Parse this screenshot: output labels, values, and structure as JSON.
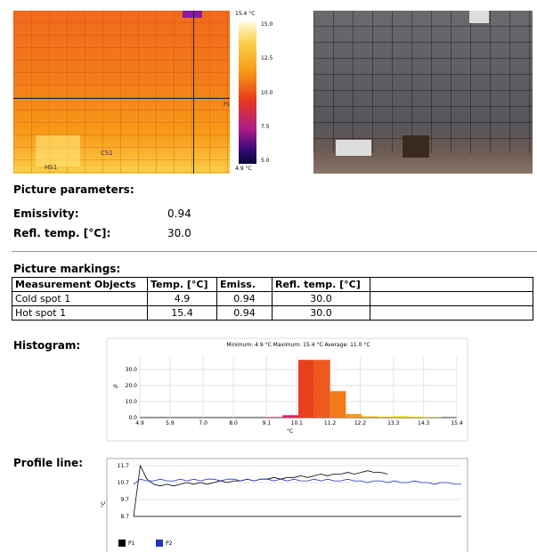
{
  "thermal_image": {
    "max_label": "15.4 °C",
    "min_label": "4.9 °C",
    "scale_labels": [
      "15.0",
      "12.5",
      "10.0",
      "7.5",
      "5.0"
    ],
    "markers": [
      "HS1",
      "CS1",
      "P1"
    ]
  },
  "picture_parameters": {
    "title": "Picture parameters:",
    "rows": [
      [
        "Emissivity:",
        "0.94"
      ],
      [
        "Refl. temp. [°C]:",
        "30.0"
      ]
    ]
  },
  "picture_markings": {
    "title": "Picture markings:",
    "header": [
      "Measurement Objects",
      "Temp. [°C]",
      "Emiss.",
      "Refl. temp. [°C]"
    ],
    "rows": [
      [
        "Cold spot 1",
        "4.9",
        "0.94",
        "30.0"
      ],
      [
        "Hot spot 1",
        "15.4",
        "0.94",
        "30.0"
      ]
    ]
  },
  "histogram_label": "Histogram:",
  "profile_label": "Profile line:",
  "chart_data": [
    {
      "type": "histogram",
      "title": "Minimum: 4.9 °C Maximum: 15.4 °C Average: 11.0 °C",
      "y_label": "%",
      "x_label": "°C",
      "bins": [
        4.9,
        5.425,
        5.95,
        6.475,
        7.0,
        7.525,
        8.05,
        8.575,
        9.1,
        9.625,
        10.15,
        10.675,
        11.2,
        11.725,
        12.25,
        12.775,
        13.3,
        13.825,
        14.35,
        14.875,
        15.4
      ],
      "values": [
        0,
        0,
        0,
        0,
        0,
        0,
        0,
        0,
        0.4,
        1.5,
        36,
        36,
        16.5,
        2.2,
        0.8,
        0.6,
        0.9,
        0.6,
        0.2,
        0
      ],
      "colors": [
        "#2a0a5e",
        "#3a0a78",
        "#52108a",
        "#6a1390",
        "#82168f",
        "#9a1a8c",
        "#b21c86",
        "#c81f7c",
        "#d24f9a",
        "#e0245a",
        "#e8401c",
        "#ec5a1c",
        "#f07b18",
        "#f59a14",
        "#f7b012",
        "#f9c40f",
        "#fbd20e",
        "#fce00c",
        "#fdea3a",
        "#fff2a0"
      ],
      "xlim": [
        4.9,
        15.4
      ],
      "xticks": [
        4.9,
        5.9,
        {
          "value": 7.0,
          "label": "7.0"
        },
        {
          "value": 8.0,
          "label": "8.0"
        },
        9.1,
        10.1,
        11.2,
        12.2,
        13.3,
        14.3,
        15.4
      ],
      "ylim": [
        0,
        38
      ],
      "yticks": [
        {
          "value": 0,
          "label": "0.0"
        },
        {
          "value": 10,
          "label": "10.0"
        },
        {
          "value": 20,
          "label": "20.0"
        },
        {
          "value": 30,
          "label": "30.0"
        }
      ],
      "grid": true
    },
    {
      "type": "line",
      "y_label": "°C",
      "ylim": [
        8.7,
        11.7
      ],
      "yticks": [
        8.7,
        9.7,
        10.7,
        11.7
      ],
      "grid": true,
      "series": [
        {
          "name": "P1",
          "color": "#000000",
          "values": [
            8.7,
            11.7,
            10.9,
            10.6,
            10.5,
            10.6,
            10.5,
            10.6,
            10.7,
            10.6,
            10.7,
            10.6,
            10.7,
            10.8,
            10.7,
            10.8,
            10.8,
            10.9,
            10.8,
            10.9,
            10.9,
            11.0,
            10.9,
            11.0,
            11.0,
            11.1,
            11.0,
            11.1,
            11.2,
            11.1,
            11.2,
            11.2,
            11.3,
            11.2,
            11.3,
            11.4,
            11.3,
            11.3,
            11.2,
            null,
            null,
            null,
            null,
            null,
            null,
            null,
            null,
            null,
            null,
            null
          ]
        },
        {
          "name": "P2",
          "color": "#2233bb",
          "values": [
            10.6,
            10.9,
            10.8,
            10.8,
            10.9,
            10.8,
            10.8,
            10.9,
            10.8,
            10.9,
            10.8,
            10.9,
            10.9,
            10.8,
            10.9,
            10.9,
            10.8,
            10.9,
            10.8,
            10.9,
            10.9,
            10.8,
            10.9,
            10.8,
            10.9,
            10.8,
            10.8,
            10.9,
            10.8,
            10.9,
            10.8,
            10.8,
            10.9,
            10.8,
            10.8,
            10.7,
            10.8,
            10.8,
            10.7,
            10.8,
            10.7,
            10.7,
            10.8,
            10.7,
            10.7,
            10.6,
            10.7,
            10.7,
            10.6,
            10.6
          ]
        }
      ]
    }
  ]
}
